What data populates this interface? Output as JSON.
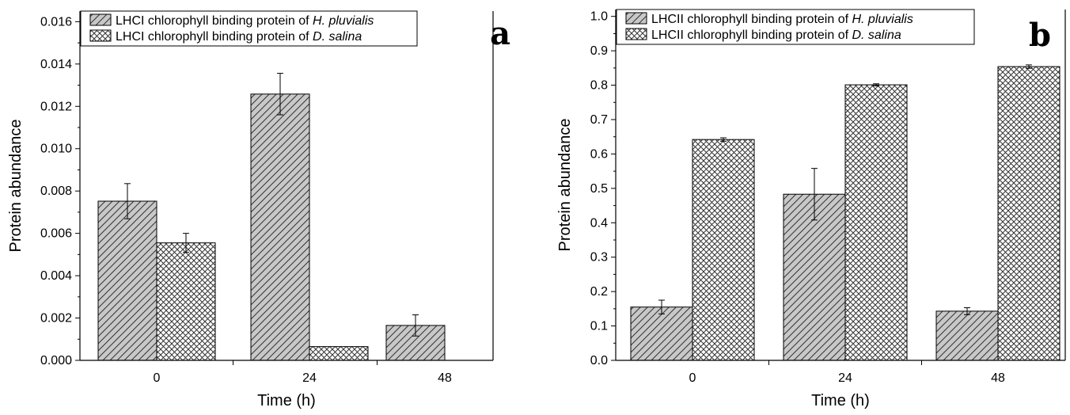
{
  "colors": {
    "bar_fill": "#c8c8c8",
    "hatch": "#333333",
    "axis": "#000000",
    "background": "#ffffff"
  },
  "chart_data": [
    {
      "type": "bar",
      "panel_label": "a",
      "categories": [
        "0",
        "24",
        "48"
      ],
      "xlabel": "Time (h)",
      "ylabel": "Protein abundance",
      "ylim": [
        0,
        0.0165
      ],
      "yticks": [
        "0.000",
        "0.002",
        "0.004",
        "0.006",
        "0.008",
        "0.010",
        "0.012",
        "0.014",
        "0.016"
      ],
      "grid": false,
      "legend_position": "top-left",
      "series": [
        {
          "legend_prefix": "LHCI chlorophyll binding protein of ",
          "legend_species": "H. pluvialis",
          "pattern": "diagonal",
          "values": [
            0.00752,
            0.01258,
            0.00165
          ],
          "errors": [
            0.00083,
            0.00098,
            0.0005
          ]
        },
        {
          "legend_prefix": "LHCI chlorophyll binding protein of ",
          "legend_species": "D. salina",
          "pattern": "crosshatch",
          "values": [
            0.00555,
            0.00065,
            null
          ],
          "errors": [
            0.00045,
            0,
            null
          ]
        }
      ]
    },
    {
      "type": "bar",
      "panel_label": "b",
      "categories": [
        "0",
        "24",
        "48"
      ],
      "xlabel": "Time (h)",
      "ylabel": "Protein abundance",
      "ylim": [
        0,
        1.02
      ],
      "yticks": [
        "0.0",
        "0.1",
        "0.2",
        "0.3",
        "0.4",
        "0.5",
        "0.6",
        "0.7",
        "0.8",
        "0.9",
        "1.0"
      ],
      "grid": false,
      "legend_position": "top-left",
      "series": [
        {
          "legend_prefix": "LHCII chlorophyll binding protein of ",
          "legend_species": "H. pluvialis",
          "pattern": "diagonal",
          "values": [
            0.155,
            0.483,
            0.143
          ],
          "errors": [
            0.02,
            0.075,
            0.01
          ]
        },
        {
          "legend_prefix": "LHCII chlorophyll binding protein of ",
          "legend_species": "D. salina",
          "pattern": "crosshatch",
          "values": [
            0.642,
            0.801,
            0.854
          ],
          "errors": [
            0.005,
            0.003,
            0.005
          ]
        }
      ]
    }
  ]
}
